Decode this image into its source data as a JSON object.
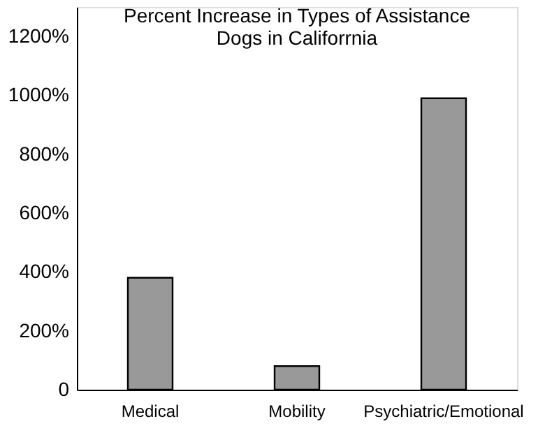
{
  "chart_data": {
    "type": "bar",
    "title": [
      "Percent Increase in Types of Assistance",
      "Dogs in Califorrnia"
    ],
    "categories": [
      "Medical",
      "Mobility",
      "Psychiatric/Emotional"
    ],
    "values": [
      380,
      80,
      990
    ],
    "color": "#999999",
    "ylim": [
      0,
      1300
    ],
    "yticks": [
      0,
      {
        "value": 200,
        "label": "200%"
      },
      {
        "value": 400,
        "label": "400%"
      },
      {
        "value": 600,
        "label": "600%"
      },
      {
        "value": 800,
        "label": "800%"
      },
      {
        "value": 1000,
        "label": "1000%"
      },
      {
        "value": 1200,
        "label": "1200%"
      }
    ],
    "grid": false
  }
}
